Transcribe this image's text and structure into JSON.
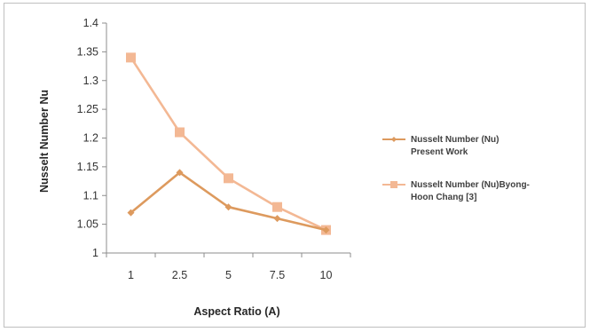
{
  "chart_data": {
    "type": "line",
    "categories": [
      "1",
      "2.5",
      "5",
      "7.5",
      "10"
    ],
    "series": [
      {
        "name": "Nusselt Number (Nu) Present Work",
        "legend_lines": [
          "Nusselt Number (Nu)",
          "Present Work"
        ],
        "values": [
          1.07,
          1.14,
          1.08,
          1.06,
          1.04
        ],
        "color": "#dd9a5e",
        "marker": "diamond"
      },
      {
        "name": "Nusselt Number (Nu)Byong-Hoon Chang [3]",
        "legend_lines": [
          "Nusselt Number (Nu)Byong-",
          "Hoon Chang [3]"
        ],
        "values": [
          1.34,
          1.21,
          1.13,
          1.08,
          1.04
        ],
        "color": "#f3b894",
        "marker": "square"
      }
    ],
    "xlabel": "Aspect Ratio (A)",
    "ylabel": "Nusselt Number Nu",
    "ylim": [
      1,
      1.4
    ],
    "yticks": [
      "1",
      "1.05",
      "1.1",
      "1.15",
      "1.2",
      "1.25",
      "1.3",
      "1.35",
      "1.4"
    ],
    "grid": false,
    "legend_position": "right"
  }
}
